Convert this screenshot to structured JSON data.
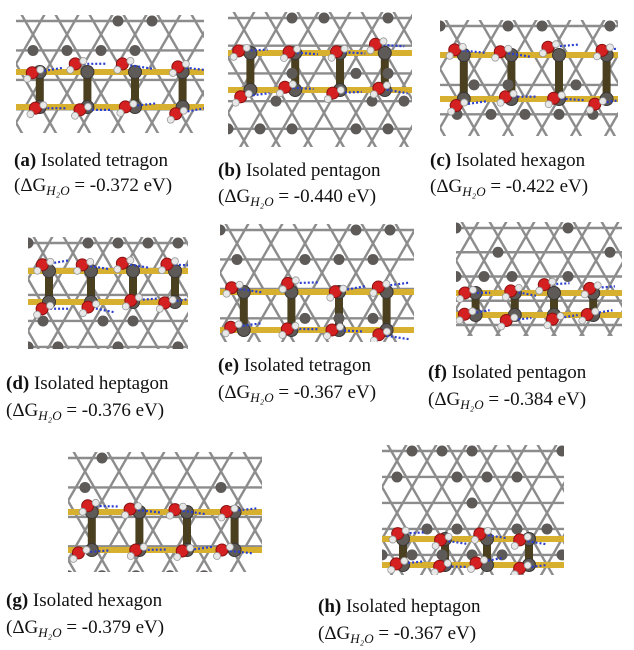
{
  "figure": {
    "panels": [
      {
        "id": "a",
        "letter": "(a)",
        "name": "Isolated tetragon",
        "dg_prefix": "(ΔG",
        "dg_sub": "H₂O",
        "dg_value": " = -0.372 eV)"
      },
      {
        "id": "b",
        "letter": "(b)",
        "name": "Isolated pentagon",
        "dg_prefix": "(ΔG",
        "dg_sub": "H₂O",
        "dg_value": " = -0.440 eV)"
      },
      {
        "id": "c",
        "letter": "(c)",
        "name": "Isolated hexagon",
        "dg_prefix": "(ΔG",
        "dg_sub": "H₂O",
        "dg_value": " = -0.422 eV)"
      },
      {
        "id": "d",
        "letter": "(d)",
        "name": "Isolated heptagon",
        "dg_prefix": "(ΔG",
        "dg_sub": "H₂O",
        "dg_value": " = -0.376 eV)"
      },
      {
        "id": "e",
        "letter": "(e)",
        "name": "Isolated tetragon",
        "dg_prefix": "(ΔG",
        "dg_sub": "H₂O",
        "dg_value": " = -0.367 eV)"
      },
      {
        "id": "f",
        "letter": "(f)",
        "name": "Isolated pentagon",
        "dg_prefix": "(ΔG",
        "dg_sub": "H₂O",
        "dg_value": " = -0.384 eV)"
      },
      {
        "id": "g",
        "letter": "(g)",
        "name": "Isolated hexagon",
        "dg_prefix": "(ΔG",
        "dg_sub": "H₂O",
        "dg_value": " = -0.379 eV)"
      },
      {
        "id": "h",
        "letter": "(h)",
        "name": "Isolated heptagon",
        "dg_prefix": "(ΔG",
        "dg_sub": "H₂O",
        "dg_value": " = -0.367 eV)"
      }
    ]
  },
  "colors": {
    "lattice_bond": "#8c8c8c",
    "metal_atom": "#5e5a58",
    "oxygen_atom": "#d42020",
    "hydrogen_atom": "#e8e8e8",
    "hbond_dash": "#2a3fd0",
    "gold_rod": "#d8b030",
    "pillar": "#4a4020"
  }
}
